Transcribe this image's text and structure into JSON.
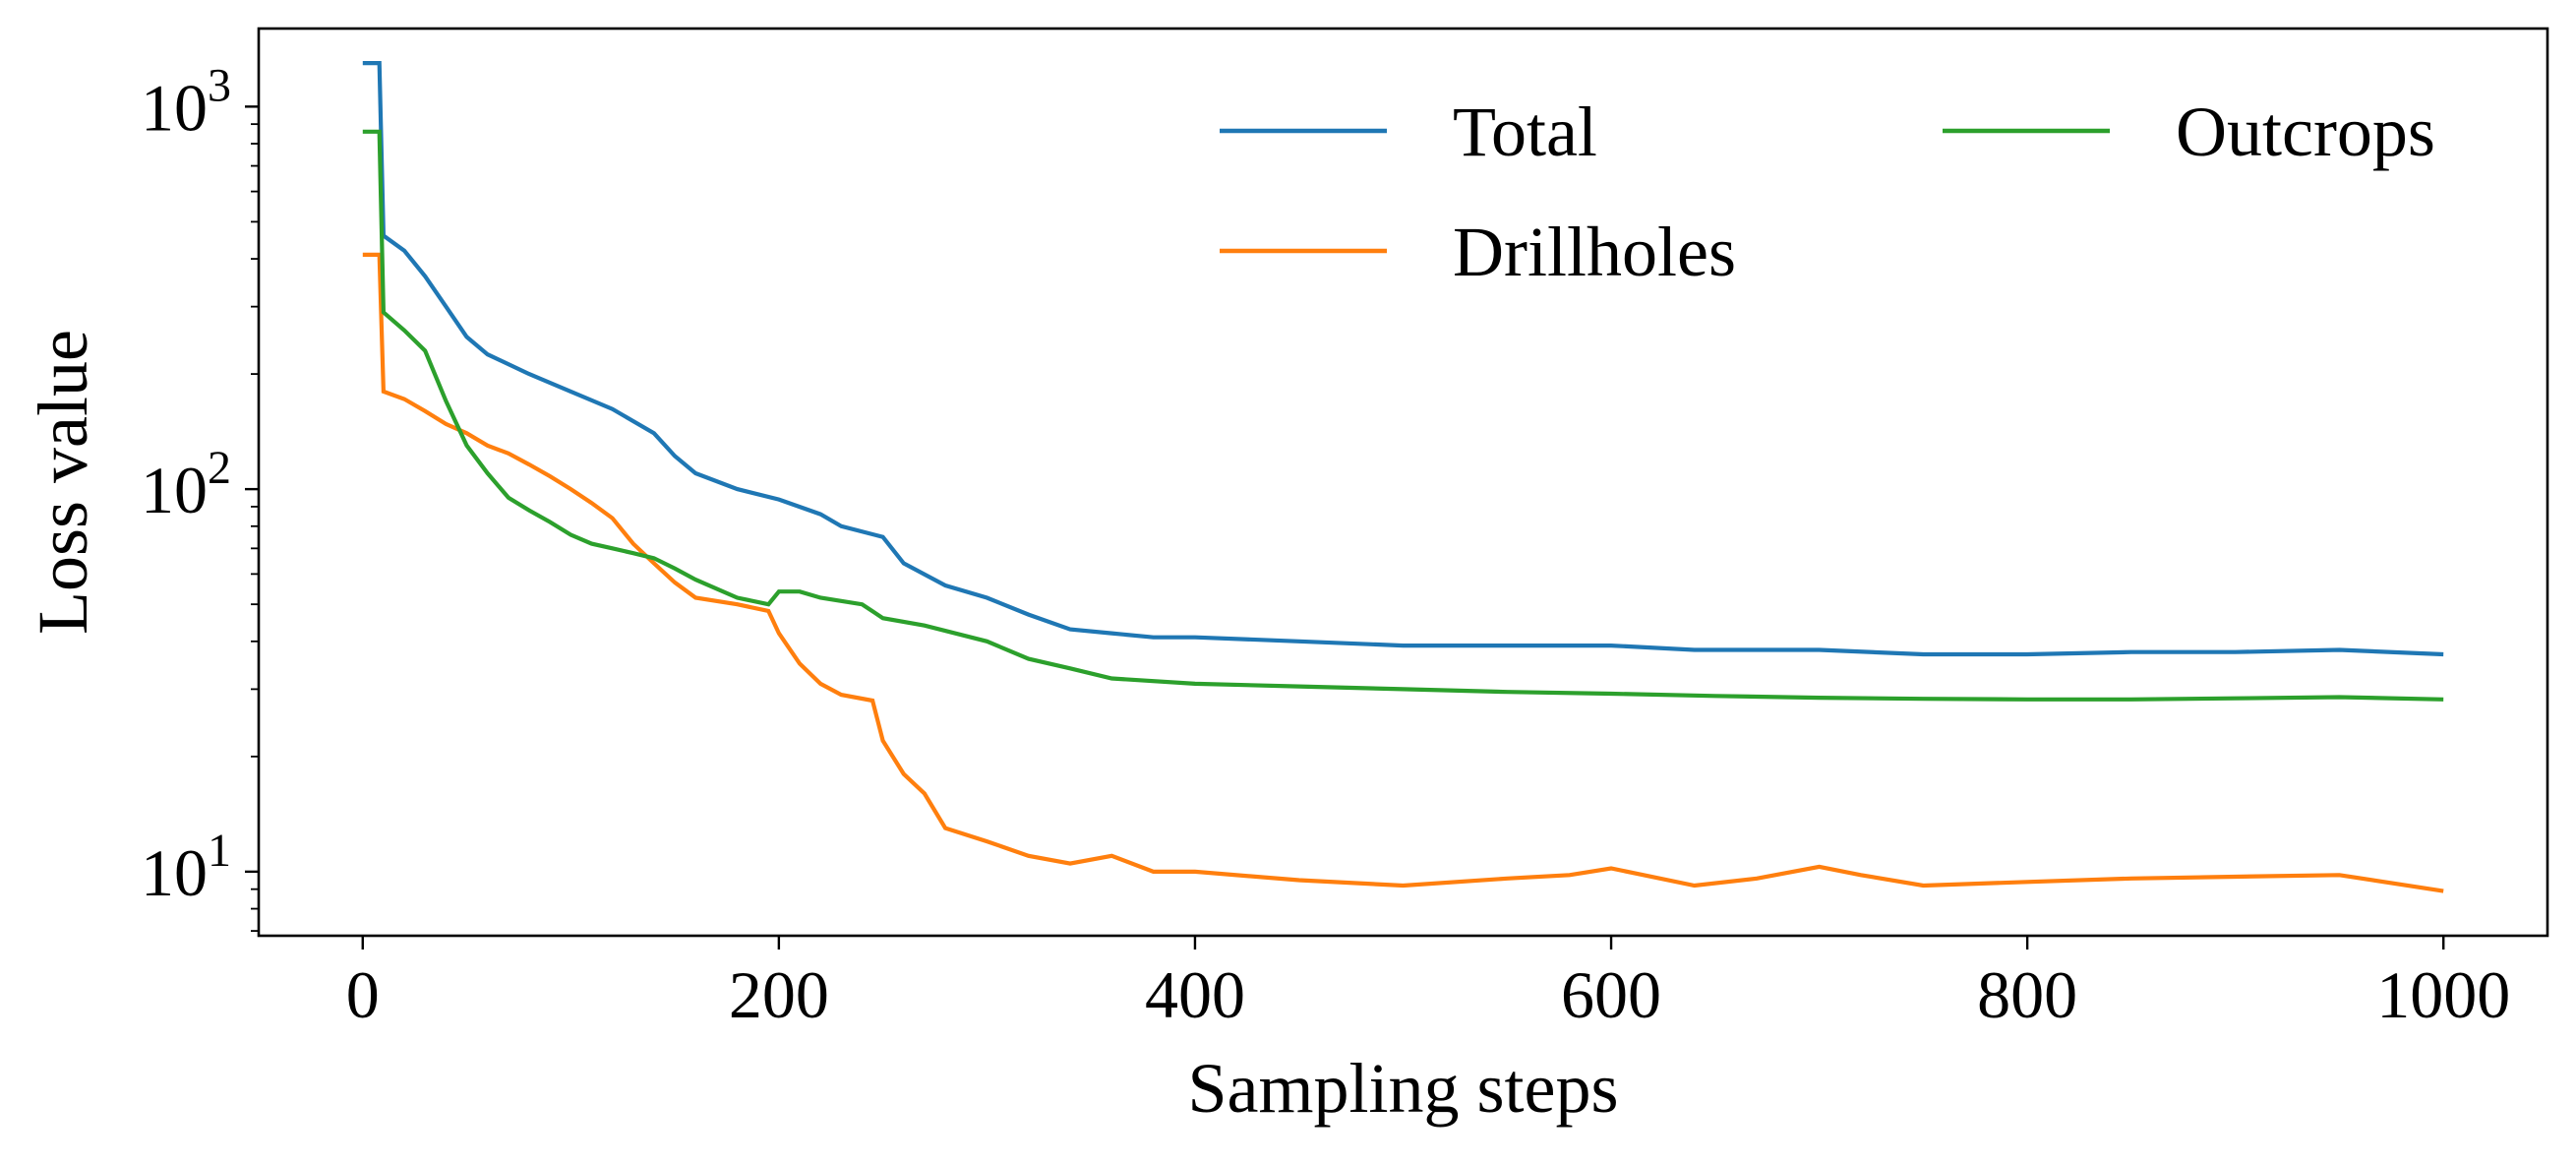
{
  "chart_data": {
    "type": "line",
    "xlabel": "Sampling steps",
    "ylabel": "Loss value",
    "xlim": [
      -50,
      1050
    ],
    "ylim": [
      6.8,
      1600
    ],
    "yscale": "log",
    "xticks": [
      0,
      200,
      400,
      600,
      800,
      1000
    ],
    "xtick_labels": [
      "0",
      "200",
      "400",
      "600",
      "800",
      "1000"
    ],
    "yticks": [
      10,
      100,
      1000
    ],
    "ytick_labels": [
      {
        "base": "10",
        "exp": "1"
      },
      {
        "base": "10",
        "exp": "2"
      },
      {
        "base": "10",
        "exp": "3"
      }
    ],
    "grid": false,
    "legend": {
      "placement": "top-right",
      "columns": 2
    },
    "series": [
      {
        "name": "Total",
        "color": "#1f77b4",
        "points": [
          [
            0,
            1300
          ],
          [
            8,
            1300
          ],
          [
            10,
            460
          ],
          [
            20,
            420
          ],
          [
            30,
            360
          ],
          [
            40,
            300
          ],
          [
            50,
            250
          ],
          [
            60,
            225
          ],
          [
            80,
            200
          ],
          [
            100,
            180
          ],
          [
            120,
            162
          ],
          [
            140,
            140
          ],
          [
            150,
            122
          ],
          [
            160,
            110
          ],
          [
            180,
            100
          ],
          [
            200,
            94
          ],
          [
            220,
            86
          ],
          [
            230,
            80
          ],
          [
            250,
            75
          ],
          [
            260,
            64
          ],
          [
            280,
            56
          ],
          [
            300,
            52
          ],
          [
            320,
            47
          ],
          [
            340,
            43
          ],
          [
            360,
            42
          ],
          [
            380,
            41
          ],
          [
            400,
            41
          ],
          [
            450,
            40
          ],
          [
            500,
            39
          ],
          [
            550,
            39
          ],
          [
            600,
            39
          ],
          [
            640,
            38
          ],
          [
            700,
            38
          ],
          [
            750,
            37
          ],
          [
            800,
            37
          ],
          [
            850,
            37.5
          ],
          [
            900,
            37.5
          ],
          [
            950,
            38
          ],
          [
            1000,
            37
          ]
        ]
      },
      {
        "name": "Drillholes",
        "color": "#ff7f0e",
        "points": [
          [
            0,
            410
          ],
          [
            8,
            410
          ],
          [
            10,
            180
          ],
          [
            20,
            172
          ],
          [
            30,
            160
          ],
          [
            40,
            148
          ],
          [
            50,
            140
          ],
          [
            60,
            130
          ],
          [
            70,
            124
          ],
          [
            80,
            116
          ],
          [
            90,
            108
          ],
          [
            100,
            100
          ],
          [
            110,
            92
          ],
          [
            120,
            84
          ],
          [
            130,
            72
          ],
          [
            140,
            64
          ],
          [
            150,
            57
          ],
          [
            160,
            52
          ],
          [
            180,
            50
          ],
          [
            195,
            48
          ],
          [
            200,
            42
          ],
          [
            210,
            35
          ],
          [
            220,
            31
          ],
          [
            230,
            29
          ],
          [
            245,
            28
          ],
          [
            250,
            22
          ],
          [
            260,
            18
          ],
          [
            270,
            16
          ],
          [
            280,
            13
          ],
          [
            300,
            12
          ],
          [
            320,
            11
          ],
          [
            340,
            10.5
          ],
          [
            360,
            11
          ],
          [
            380,
            10
          ],
          [
            400,
            10
          ],
          [
            450,
            9.5
          ],
          [
            500,
            9.2
          ],
          [
            550,
            9.6
          ],
          [
            580,
            9.8
          ],
          [
            600,
            10.2
          ],
          [
            640,
            9.2
          ],
          [
            670,
            9.6
          ],
          [
            700,
            10.3
          ],
          [
            720,
            9.8
          ],
          [
            750,
            9.2
          ],
          [
            800,
            9.4
          ],
          [
            850,
            9.6
          ],
          [
            900,
            9.7
          ],
          [
            950,
            9.8
          ],
          [
            1000,
            8.9
          ]
        ]
      },
      {
        "name": "Outcrops",
        "color": "#2ca02c",
        "points": [
          [
            0,
            860
          ],
          [
            8,
            860
          ],
          [
            10,
            290
          ],
          [
            20,
            260
          ],
          [
            30,
            230
          ],
          [
            40,
            170
          ],
          [
            50,
            130
          ],
          [
            60,
            110
          ],
          [
            70,
            95
          ],
          [
            80,
            88
          ],
          [
            90,
            82
          ],
          [
            100,
            76
          ],
          [
            110,
            72
          ],
          [
            120,
            70
          ],
          [
            130,
            68
          ],
          [
            140,
            66
          ],
          [
            150,
            62
          ],
          [
            160,
            58
          ],
          [
            180,
            52
          ],
          [
            195,
            50
          ],
          [
            200,
            54
          ],
          [
            210,
            54
          ],
          [
            220,
            52
          ],
          [
            240,
            50
          ],
          [
            250,
            46
          ],
          [
            270,
            44
          ],
          [
            300,
            40
          ],
          [
            320,
            36
          ],
          [
            340,
            34
          ],
          [
            360,
            32
          ],
          [
            400,
            31
          ],
          [
            450,
            30.5
          ],
          [
            500,
            30
          ],
          [
            550,
            29.5
          ],
          [
            600,
            29.2
          ],
          [
            650,
            28.8
          ],
          [
            700,
            28.5
          ],
          [
            750,
            28.3
          ],
          [
            800,
            28.2
          ],
          [
            850,
            28.2
          ],
          [
            900,
            28.4
          ],
          [
            950,
            28.6
          ],
          [
            1000,
            28.2
          ]
        ]
      }
    ]
  }
}
